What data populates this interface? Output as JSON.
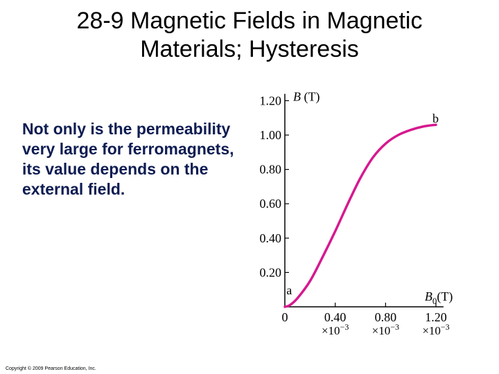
{
  "slide": {
    "title_line1": "28-9 Magnetic Fields in Magnetic",
    "title_line2": "Materials; Hysteresis",
    "body": "Not only is the permeability very large for ferromagnets, its value depends on the external field.",
    "copyright": "Copyright © 2009 Pearson Education, Inc."
  },
  "colors": {
    "curve": "#d6198f",
    "axis": "#000000",
    "body_text": "#0d1c52"
  },
  "chart_data": {
    "type": "line",
    "ylabel": "B (T)",
    "xlabel_main": "B",
    "xlabel_sub": "0",
    "xlabel_unit": "(T)",
    "xlim": [
      0,
      1.26
    ],
    "ylim": [
      0,
      1.24
    ],
    "y_ticks": [
      {
        "value": 0.2,
        "label": "0.20"
      },
      {
        "value": 0.4,
        "label": "0.40"
      },
      {
        "value": 0.6,
        "label": "0.60"
      },
      {
        "value": 0.8,
        "label": "0.80"
      },
      {
        "value": 1.0,
        "label": "1.00"
      },
      {
        "value": 1.2,
        "label": "1.20"
      }
    ],
    "x_ticks": [
      {
        "value": 0,
        "label": "0",
        "exp": ""
      },
      {
        "value": 0.4,
        "label": "0.40",
        "exp": "×10−3"
      },
      {
        "value": 0.8,
        "label": "0.80",
        "exp": "×10−3"
      },
      {
        "value": 1.2,
        "label": "1.20",
        "exp": "×10−3"
      }
    ],
    "point_labels": [
      {
        "text": "a",
        "x": 0.04,
        "y": 0.08
      },
      {
        "text": "b",
        "x": 1.2,
        "y": 1.08
      }
    ],
    "series": [
      {
        "x": [
          0,
          0.04,
          0.1,
          0.2,
          0.3,
          0.4,
          0.5,
          0.6,
          0.7,
          0.8,
          0.9,
          1.0,
          1.1,
          1.2
        ],
        "y": [
          0,
          0.01,
          0.05,
          0.15,
          0.29,
          0.44,
          0.6,
          0.75,
          0.87,
          0.95,
          1.0,
          1.03,
          1.05,
          1.06
        ]
      }
    ]
  }
}
